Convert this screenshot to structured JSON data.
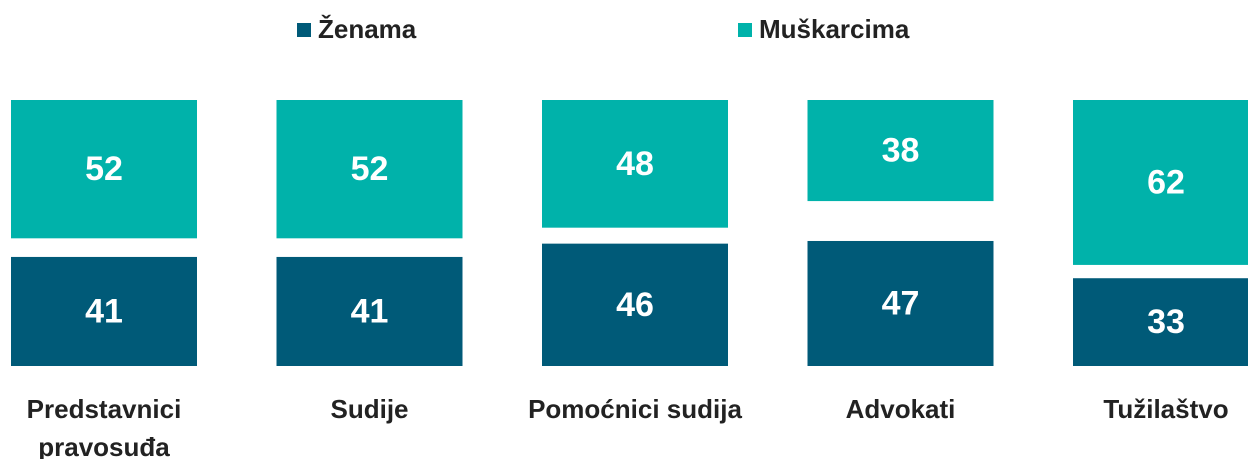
{
  "chart_data": {
    "type": "bar",
    "categories": [
      "Predstavnici pravosuđa",
      "Sudije",
      "Pomoćnici sudija",
      "Advokati",
      "Tužilaštvo"
    ],
    "series": [
      {
        "name": "Ženama",
        "color": "#005a78",
        "values": [
          41,
          41,
          46,
          47,
          33
        ]
      },
      {
        "name": "Muškarcima",
        "color": "#00b2aa",
        "values": [
          52,
          52,
          48,
          38,
          62
        ]
      }
    ],
    "ylim": [
      0,
      100
    ],
    "legend": "top"
  }
}
